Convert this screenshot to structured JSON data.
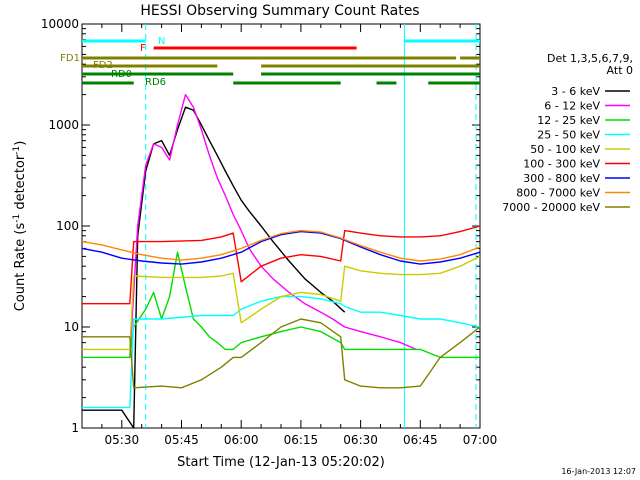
{
  "chart_data": {
    "type": "line",
    "title": "HESSI Observing Summary Count Rates",
    "xlabel": "Start Time (12-Jan-13 05:20:02)",
    "ylabel": "Count Rate (s-1 detector-1)",
    "ylabel_parts": {
      "main": "Count Rate (s",
      "sup1": "-1",
      "mid": " detector",
      "sup2": "-1",
      "end": ")"
    },
    "x_unit": "minutes after 05:20",
    "xlim": [
      0,
      100
    ],
    "ylim": [
      1,
      10000
    ],
    "yscale": "log",
    "x_ticks": [
      {
        "value": 10,
        "label": "05:30"
      },
      {
        "value": 25,
        "label": "05:45"
      },
      {
        "value": 40,
        "label": "06:00"
      },
      {
        "value": 55,
        "label": "06:15"
      },
      {
        "value": 70,
        "label": "06:30"
      },
      {
        "value": 85,
        "label": "06:45"
      },
      {
        "value": 100,
        "label": "07:00"
      }
    ],
    "y_ticks": [
      {
        "value": 1,
        "label": "1"
      },
      {
        "value": 10,
        "label": "10"
      },
      {
        "value": 100,
        "label": "100"
      },
      {
        "value": 1000,
        "label": "1000"
      },
      {
        "value": 10000,
        "label": "10000"
      }
    ],
    "legend_header": [
      "Det 1,3,5,6,7,9,",
      "Att 0"
    ],
    "legend_position": "right",
    "series": [
      {
        "name": "3 - 6 keV",
        "color": "#000000",
        "x": [
          0,
          10,
          13,
          14,
          16,
          18,
          20,
          22,
          24,
          26,
          28,
          30,
          32,
          34,
          36,
          38,
          40,
          42,
          45,
          48,
          52,
          56,
          60,
          63,
          66
        ],
        "y": [
          1.5,
          1.5,
          1.0,
          80,
          350,
          650,
          700,
          500,
          900,
          1500,
          1400,
          1000,
          700,
          500,
          350,
          250,
          180,
          140,
          100,
          70,
          45,
          30,
          22,
          18,
          14
        ]
      },
      {
        "name": "6 - 12 keV",
        "color": "#ff00ff",
        "x": [
          12,
          14,
          16,
          18,
          20,
          22,
          24,
          26,
          28,
          30,
          32,
          34,
          36,
          38,
          40,
          42,
          45,
          48,
          52,
          56,
          60,
          63,
          66,
          70,
          75,
          80,
          84
        ],
        "y": [
          5,
          100,
          400,
          650,
          600,
          450,
          1000,
          2000,
          1500,
          900,
          500,
          300,
          200,
          130,
          90,
          60,
          40,
          30,
          22,
          17,
          14,
          12,
          10,
          9,
          8,
          7,
          6
        ]
      },
      {
        "name": "12 - 25 keV",
        "color": "#00dd00",
        "x": [
          0,
          12,
          13,
          16,
          18,
          20,
          22,
          24,
          26,
          28,
          30,
          32,
          34,
          36,
          38,
          40,
          45,
          50,
          55,
          60,
          65,
          66,
          70,
          75,
          80,
          85,
          90,
          95,
          100
        ],
        "y": [
          5,
          5,
          10,
          15,
          22,
          12,
          20,
          55,
          25,
          12,
          10,
          8,
          7,
          6,
          6,
          7,
          8,
          9,
          10,
          9,
          7,
          6,
          6,
          6,
          6,
          6,
          5,
          5,
          5
        ]
      },
      {
        "name": "25 - 50 keV",
        "color": "#00ffff",
        "x": [
          0,
          12,
          13,
          20,
          30,
          38,
          40,
          45,
          50,
          55,
          60,
          65,
          66,
          70,
          75,
          80,
          85,
          90,
          95,
          100
        ],
        "y": [
          1.6,
          1.6,
          12,
          12,
          13,
          13,
          15,
          18,
          20,
          20,
          19,
          17,
          16,
          14,
          14,
          13,
          12,
          12,
          11,
          10
        ]
      },
      {
        "name": "50 - 100 keV",
        "color": "#cccc00",
        "x": [
          0,
          12,
          13,
          20,
          30,
          35,
          38,
          40,
          45,
          50,
          55,
          60,
          65,
          66,
          70,
          75,
          80,
          85,
          90,
          95,
          100
        ],
        "y": [
          6,
          6,
          32,
          31,
          31,
          32,
          34,
          11,
          15,
          20,
          22,
          21,
          18,
          40,
          36,
          34,
          33,
          33,
          34,
          40,
          50
        ]
      },
      {
        "name": "100 - 300 keV",
        "color": "#ff0000",
        "x": [
          0,
          12,
          13,
          20,
          30,
          35,
          38,
          40,
          45,
          50,
          55,
          60,
          65,
          66,
          70,
          75,
          80,
          85,
          90,
          95,
          100
        ],
        "y": [
          17,
          17,
          70,
          70,
          72,
          78,
          85,
          28,
          40,
          48,
          52,
          50,
          45,
          90,
          85,
          80,
          78,
          78,
          80,
          88,
          100
        ]
      },
      {
        "name": "300 - 800 keV",
        "color": "#0000ff",
        "x": [
          0,
          5,
          10,
          15,
          20,
          25,
          30,
          35,
          40,
          45,
          50,
          55,
          60,
          65,
          70,
          75,
          80,
          85,
          90,
          95,
          100
        ],
        "y": [
          60,
          55,
          48,
          45,
          43,
          42,
          44,
          48,
          55,
          70,
          82,
          88,
          85,
          75,
          62,
          52,
          45,
          42,
          44,
          48,
          55
        ]
      },
      {
        "name": "800 - 7000 keV",
        "color": "#ff8800",
        "x": [
          0,
          5,
          10,
          15,
          20,
          25,
          30,
          35,
          40,
          45,
          50,
          55,
          60,
          65,
          70,
          75,
          80,
          85,
          90,
          95,
          100
        ],
        "y": [
          70,
          65,
          58,
          52,
          48,
          46,
          48,
          52,
          60,
          72,
          84,
          90,
          87,
          76,
          64,
          55,
          48,
          45,
          47,
          52,
          62
        ]
      },
      {
        "name": "7000 - 20000 keV",
        "color": "#808000",
        "x": [
          0,
          12,
          13,
          20,
          25,
          30,
          35,
          38,
          40,
          45,
          50,
          55,
          60,
          65,
          66,
          70,
          75,
          80,
          85,
          90,
          95,
          100
        ],
        "y": [
          8,
          8,
          2.5,
          2.6,
          2.5,
          3,
          4,
          5,
          5,
          7,
          10,
          12,
          11,
          8,
          3,
          2.6,
          2.5,
          2.5,
          2.6,
          5,
          7,
          10
        ]
      }
    ],
    "bars": [
      {
        "label": "N",
        "color": "#00ffff",
        "level": 1,
        "segments": [
          [
            0,
            16
          ],
          [
            81,
            100
          ]
        ]
      },
      {
        "label": "F",
        "color": "#ff0000",
        "level": 2,
        "segments": [
          [
            18,
            69
          ]
        ]
      },
      {
        "label": "FD1",
        "color": "#808000",
        "level": 3,
        "segments": [
          [
            0,
            45
          ],
          [
            45,
            94
          ],
          [
            95,
            100
          ]
        ]
      },
      {
        "label": "FD2",
        "color": "#808000",
        "level": 4,
        "segments": [
          [
            0,
            34
          ],
          [
            45,
            100
          ]
        ]
      },
      {
        "label": "RD0",
        "color": "#008000",
        "level": 5,
        "segments": [
          [
            0,
            38
          ],
          [
            45,
            100
          ]
        ]
      },
      {
        "label": "RD6",
        "color": "#008000",
        "level": 6,
        "segments": [
          [
            0,
            13
          ],
          [
            38,
            65
          ],
          [
            74,
            79
          ],
          [
            87,
            100
          ]
        ]
      }
    ],
    "vlines": [
      {
        "x": 16,
        "color": "#00ffff",
        "style": "dashed"
      },
      {
        "x": 81,
        "color": "#00ffff",
        "style": "solid"
      },
      {
        "x": 99,
        "color": "#00ffff",
        "style": "dashed"
      }
    ]
  },
  "footer": {
    "timestamp": "16-Jan-2013 12:07"
  }
}
